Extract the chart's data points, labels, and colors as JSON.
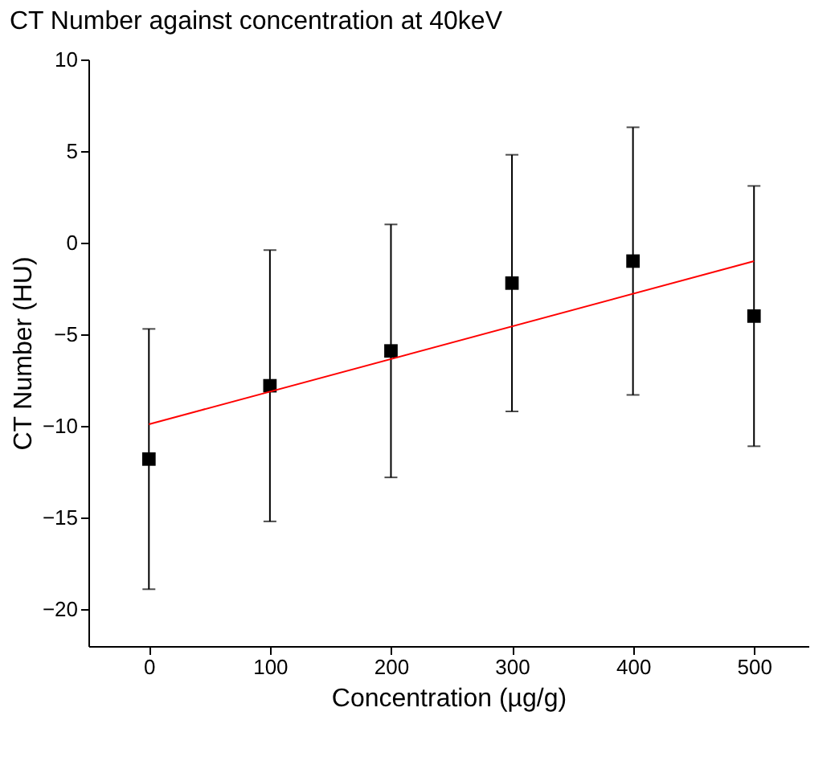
{
  "chart_data": {
    "type": "scatter",
    "title": "CT Number against concentration at 40keV",
    "xlabel": "Concentration (µg/g)",
    "ylabel": "CT Number (HU)",
    "xlim": [
      -50,
      545
    ],
    "ylim": [
      -22,
      10
    ],
    "xticks": [
      0,
      100,
      200,
      300,
      400,
      500
    ],
    "yticks": [
      -20,
      -15,
      -10,
      -5,
      0,
      5,
      10
    ],
    "grid": false,
    "marker": "square",
    "series": [
      {
        "color": "#000000",
        "x": [
          0,
          100,
          200,
          300,
          400,
          500
        ],
        "values": [
          -11.8,
          -7.8,
          -5.9,
          -2.2,
          -1.0,
          -4.0
        ],
        "errors": [
          7.1,
          7.4,
          6.9,
          7.0,
          7.3,
          7.1
        ]
      },
      {
        "type": "line",
        "color": "#ff0000",
        "x": [
          0,
          500
        ],
        "values": [
          -9.9,
          -1.0
        ],
        "marker": "none",
        "line_style": "solid"
      }
    ]
  }
}
